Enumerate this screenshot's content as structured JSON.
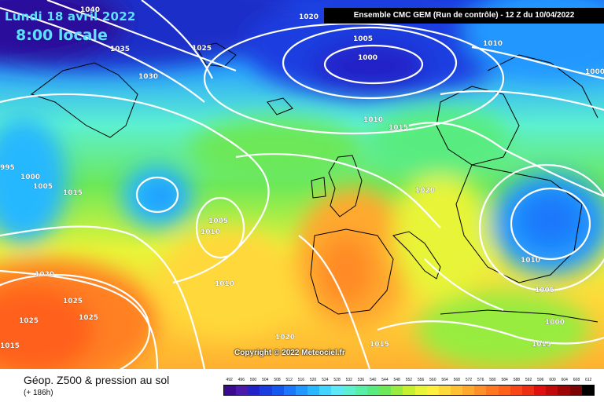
{
  "header": {
    "date_line": "Lundi 18 avril 2022",
    "time_line": "8:00 locale",
    "model_line": "Ensemble CMC GEM  (Run de contrôle)  -  12 Z du 10/04/2022"
  },
  "map": {
    "copyright": "Copyright © 2022 Meteociel.fr",
    "isobar_labels": [
      {
        "text": "1040"
      },
      {
        "text": "1035"
      },
      {
        "text": "1030"
      },
      {
        "text": "1025"
      },
      {
        "text": "1020"
      },
      {
        "text": "1005"
      },
      {
        "text": "1000"
      },
      {
        "text": "1010"
      },
      {
        "text": "1000"
      },
      {
        "text": "1010"
      },
      {
        "text": "1015"
      },
      {
        "text": "995"
      },
      {
        "text": "1000"
      },
      {
        "text": "1005"
      },
      {
        "text": "1015"
      },
      {
        "text": "1005"
      },
      {
        "text": "1010"
      },
      {
        "text": "1020"
      },
      {
        "text": "1020"
      },
      {
        "text": "1025"
      },
      {
        "text": "1025"
      },
      {
        "text": "1025"
      },
      {
        "text": "1015"
      },
      {
        "text": "1010"
      },
      {
        "text": "1020"
      },
      {
        "text": "1015"
      },
      {
        "text": "1010"
      },
      {
        "text": "1005"
      },
      {
        "text": "1000"
      },
      {
        "text": "1015"
      }
    ]
  },
  "footer": {
    "title": "Géop. Z500 & pression au sol",
    "subtitle": "(+ 186h)"
  },
  "scale": {
    "labels": [
      "492",
      "496",
      "500",
      "504",
      "508",
      "512",
      "516",
      "520",
      "524",
      "528",
      "532",
      "536",
      "540",
      "544",
      "548",
      "552",
      "556",
      "560",
      "564",
      "568",
      "572",
      "576",
      "580",
      "584",
      "588",
      "592",
      "596",
      "600",
      "604",
      "608",
      "612"
    ],
    "colors": [
      "#3a0a8f",
      "#4b1aaa",
      "#2222c8",
      "#1a3ce0",
      "#1558f0",
      "#1b78fb",
      "#2098ff",
      "#28b8ff",
      "#40d4ff",
      "#5ce8f4",
      "#5cf0d0",
      "#58f0a8",
      "#58ec80",
      "#6ce858",
      "#98ec40",
      "#c4f030",
      "#e8f438",
      "#fff040",
      "#ffd83a",
      "#ffc034",
      "#ffa82e",
      "#ff9028",
      "#ff7820",
      "#ff601a",
      "#f84616",
      "#ec2e12",
      "#e01010",
      "#c00a0a",
      "#9c0606",
      "#7a0404",
      "#000000"
    ]
  }
}
